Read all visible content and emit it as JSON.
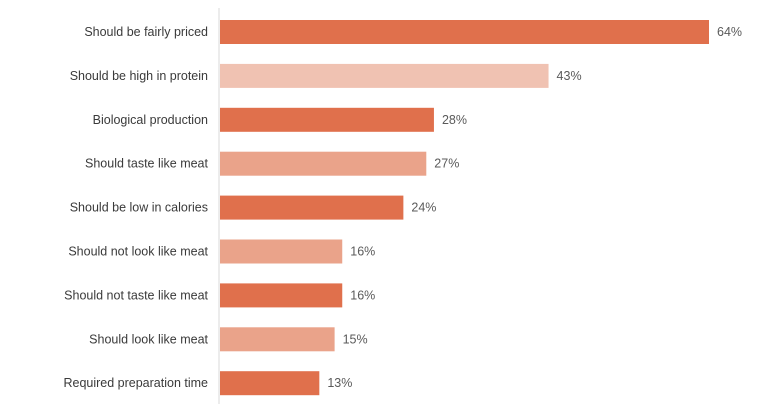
{
  "chart_data": {
    "type": "bar",
    "orientation": "horizontal",
    "categories": [
      "Should be fairly priced",
      "Should be high in protein",
      "Biological production",
      "Should taste like meat",
      "Should be low in calories",
      "Should not look like meat",
      "Should not taste like meat",
      "Should look like meat",
      "Required preparation time"
    ],
    "values": [
      64,
      43,
      28,
      27,
      24,
      16,
      16,
      15,
      13
    ],
    "value_labels": [
      "64%",
      "43%",
      "28%",
      "27%",
      "24%",
      "16%",
      "16%",
      "15%",
      "13%"
    ],
    "bar_colors": [
      "#e0704c",
      "#f0c2b2",
      "#e0704c",
      "#eaa38a",
      "#e0704c",
      "#eaa38a",
      "#e0704c",
      "#eaa38a",
      "#e0704c"
    ],
    "xlim": [
      0,
      64
    ],
    "grid": false,
    "legend": "none",
    "axis_line_color": "#d9d9d9"
  }
}
